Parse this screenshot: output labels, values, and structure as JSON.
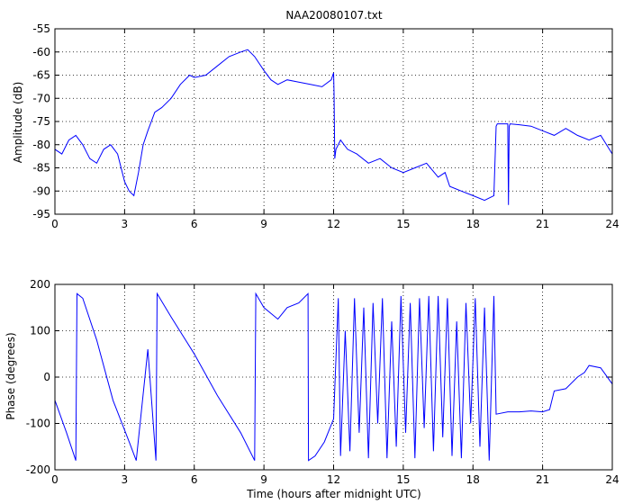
{
  "chart_data": [
    {
      "type": "line",
      "title": "NAA20080107.txt",
      "xlabel": "",
      "ylabel": "Amplitude (dB)",
      "xlim": [
        0,
        24
      ],
      "ylim": [
        -95,
        -55
      ],
      "xticks": [
        0,
        3,
        6,
        9,
        12,
        15,
        18,
        21,
        24
      ],
      "yticks": [
        -55,
        -60,
        -65,
        -70,
        -75,
        -80,
        -85,
        -90,
        -95
      ],
      "grid": true,
      "color": "#0000ff",
      "series": [
        {
          "x": [
            0,
            0.3,
            0.6,
            0.9,
            1.2,
            1.5,
            1.8,
            2.1,
            2.4,
            2.7,
            3.0,
            3.2,
            3.4,
            3.6,
            3.8,
            4.0,
            4.3,
            4.6,
            5.0,
            5.4,
            5.8,
            6.0,
            6.5,
            7.0,
            7.5,
            8.0,
            8.3,
            8.6,
            9.0,
            9.3,
            9.6,
            10.0,
            10.5,
            11.0,
            11.5,
            11.9,
            12.0,
            12.02,
            12.05,
            12.1,
            12.3,
            12.6,
            13.0,
            13.5,
            14.0,
            14.5,
            15.0,
            15.5,
            16.0,
            16.5,
            16.8,
            17.0,
            17.5,
            18.0,
            18.5,
            18.9,
            19.0,
            19.05,
            19.5,
            19.53,
            19.56,
            19.6,
            20.0,
            20.5,
            21.0,
            21.5,
            22.0,
            22.5,
            23.0,
            23.5,
            24.0
          ],
          "y": [
            -81,
            -82,
            -79,
            -78,
            -80,
            -83,
            -84,
            -81,
            -80,
            -82,
            -88,
            -90,
            -91,
            -86,
            -80,
            -77,
            -73,
            -72,
            -70,
            -67,
            -65,
            -65.5,
            -65,
            -63,
            -61,
            -60,
            -59.5,
            -61,
            -64,
            -66,
            -67,
            -66,
            -66.5,
            -67,
            -67.5,
            -66,
            -64.5,
            -69,
            -83,
            -81,
            -79,
            -81,
            -82,
            -84,
            -83,
            -85,
            -86,
            -85,
            -84,
            -87,
            -86,
            -89,
            -90,
            -91,
            -92,
            -91,
            -76,
            -75.5,
            -75.5,
            -93,
            -76,
            -75.5,
            -75.7,
            -76,
            -77,
            -78,
            -76.5,
            -78,
            -79,
            -78,
            -82
          ]
        }
      ]
    },
    {
      "type": "line",
      "title": "",
      "xlabel": "Time (hours after midnight UTC)",
      "ylabel": "Phase (degrees)",
      "xlim": [
        0,
        24
      ],
      "ylim": [
        -200,
        200
      ],
      "xticks": [
        0,
        3,
        6,
        9,
        12,
        15,
        18,
        21,
        24
      ],
      "yticks": [
        200,
        100,
        0,
        -100,
        -200
      ],
      "grid": true,
      "color": "#0000ff",
      "series": [
        {
          "x": [
            0,
            0.5,
            0.9,
            0.95,
            1.2,
            1.8,
            2.5,
            3.2,
            3.5,
            4.0,
            4.35,
            4.4,
            5.0,
            6.0,
            7.0,
            8.0,
            8.6,
            8.65,
            9.0,
            9.6,
            10.0,
            10.5,
            10.9,
            10.92,
            11.2,
            11.6,
            12.0,
            12.2,
            12.3,
            12.5,
            12.7,
            12.9,
            13.1,
            13.3,
            13.5,
            13.7,
            13.9,
            14.1,
            14.3,
            14.5,
            14.7,
            14.9,
            15.1,
            15.3,
            15.5,
            15.7,
            15.9,
            16.1,
            16.3,
            16.5,
            16.7,
            16.9,
            17.1,
            17.3,
            17.5,
            17.7,
            17.9,
            18.1,
            18.3,
            18.5,
            18.7,
            18.9,
            19.0,
            19.5,
            20.0,
            20.5,
            21.0,
            21.3,
            21.5,
            22.0,
            22.5,
            22.8,
            23.0,
            23.5,
            24.0
          ],
          "y": [
            -50,
            -120,
            -180,
            180,
            170,
            80,
            -50,
            -140,
            -180,
            60,
            -180,
            180,
            130,
            50,
            -40,
            -120,
            -180,
            180,
            150,
            125,
            150,
            160,
            180,
            -180,
            -170,
            -140,
            -90,
            170,
            -170,
            100,
            -160,
            170,
            -120,
            150,
            -175,
            160,
            -100,
            170,
            -175,
            120,
            -150,
            175,
            -120,
            160,
            -175,
            170,
            -110,
            175,
            -160,
            175,
            -130,
            170,
            -170,
            120,
            -175,
            160,
            -100,
            170,
            -150,
            150,
            -180,
            175,
            -80,
            -75,
            -75,
            -73,
            -75,
            -70,
            -30,
            -25,
            0,
            10,
            25,
            20,
            -15
          ]
        }
      ]
    }
  ]
}
